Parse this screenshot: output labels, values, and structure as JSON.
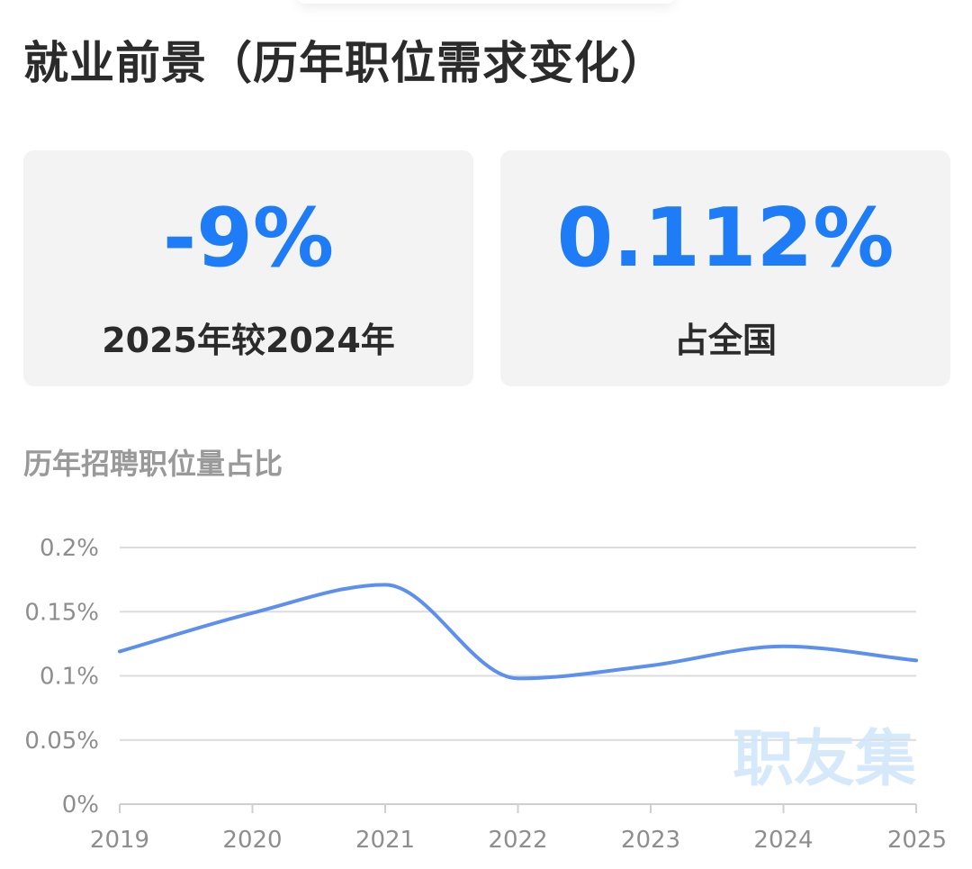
{
  "page": {
    "title": "就业前景（历年职位需求变化）"
  },
  "stats": [
    {
      "value": "-9%",
      "label": "2025年较2024年"
    },
    {
      "value": "0.112%",
      "label": "占全国"
    }
  ],
  "chart_section": {
    "title": "历年招聘职位量占比",
    "watermark": "职友集"
  },
  "colors": {
    "accent": "#1d7cf6",
    "line": "#5b8ff0",
    "card_bg": "#f3f3f3",
    "grid": "#dcdcdc"
  },
  "chart_data": {
    "type": "line",
    "title": "历年招聘职位量占比",
    "x": [
      "2019",
      "2020",
      "2021",
      "2022",
      "2023",
      "2024",
      "2025"
    ],
    "series": [
      {
        "values": [
          0.119,
          0.149,
          0.171,
          0.098,
          0.108,
          0.123,
          0.112
        ]
      }
    ],
    "y_unit": "%",
    "ylim": [
      0,
      0.2
    ],
    "y_ticks": [
      0,
      0.05,
      0.1,
      0.15,
      0.2
    ],
    "y_tick_labels": [
      "0%",
      "0.05%",
      "0.1%",
      "0.15%",
      "0.2%"
    ],
    "grid": true,
    "smooth": true
  }
}
